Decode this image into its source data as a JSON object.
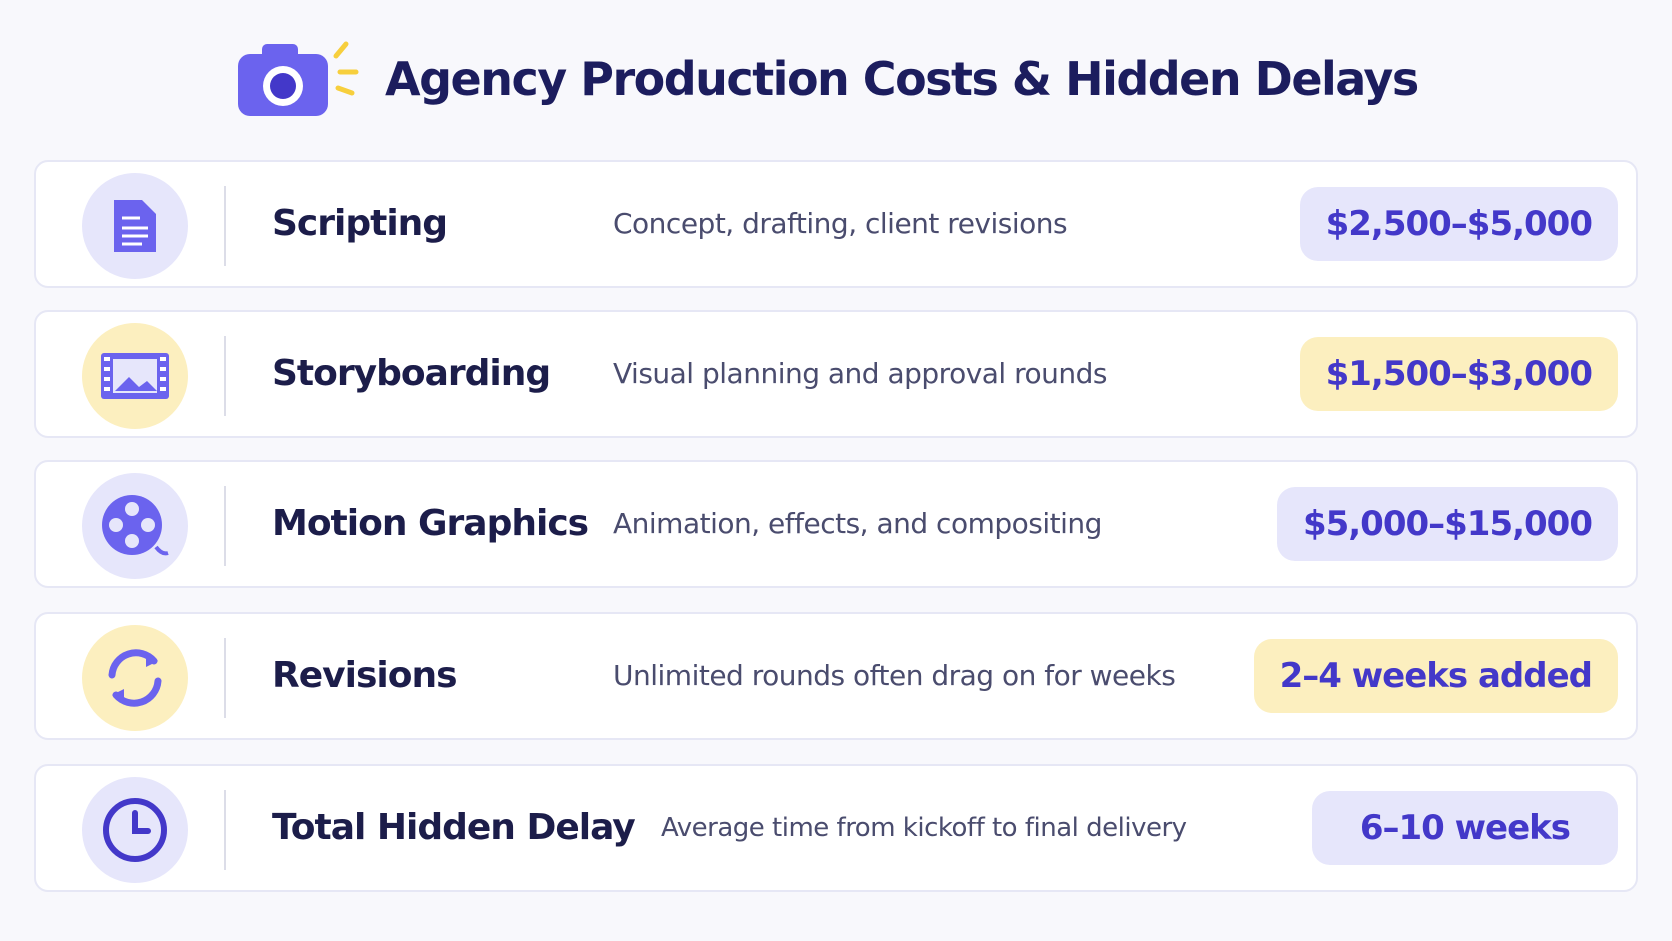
{
  "header": {
    "title": "Agency Production Costs & Hidden Delays"
  },
  "rows": [
    {
      "label": "Scripting",
      "description": "Concept, drafting, client revisions",
      "value": "$2,500–$5,000"
    },
    {
      "label": "Storyboarding",
      "description": "Visual planning and approval rounds",
      "value": "$1,500–$3,000"
    },
    {
      "label": "Motion Graphics",
      "description": "Animation, effects, and compositing",
      "value": "$5,000–$15,000"
    },
    {
      "label": "Revisions",
      "description": "Unlimited rounds often drag on for weeks",
      "value": "2–4 weeks added"
    },
    {
      "label": "Total Hidden Delay",
      "description": "Average time from kickoff to final delivery",
      "value": "6–10 weeks"
    }
  ]
}
